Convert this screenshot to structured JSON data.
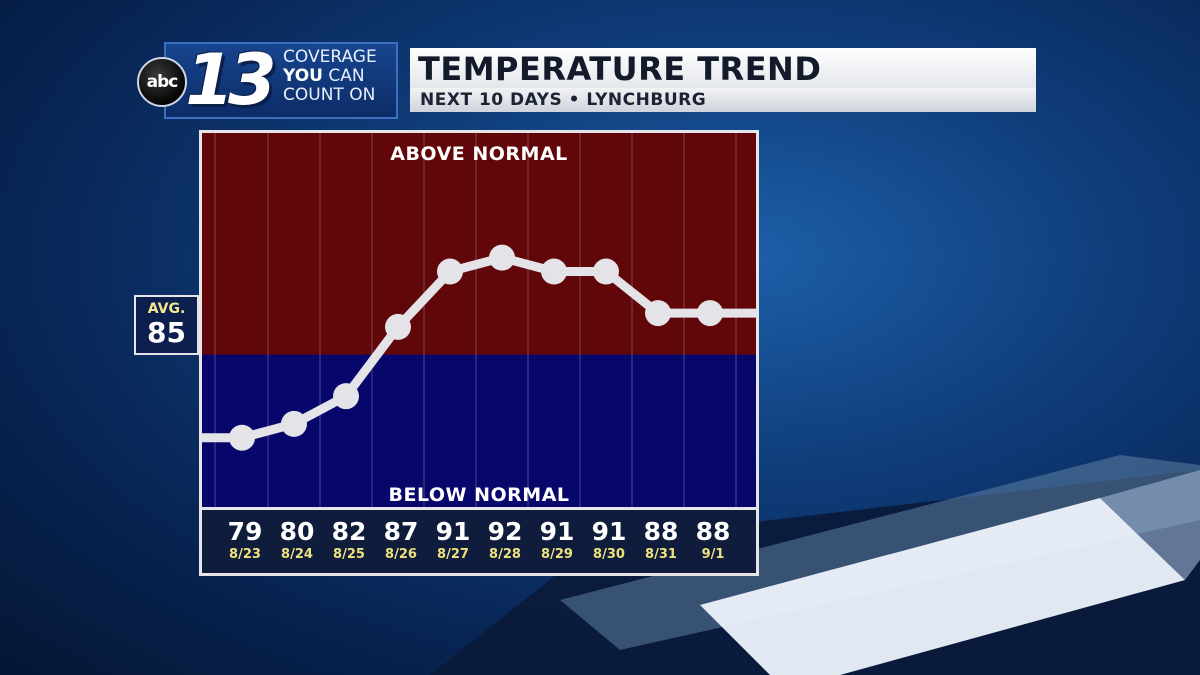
{
  "header": {
    "brand": "abc",
    "channel": "13",
    "tagline": [
      "COVERAGE",
      "YOU",
      "CAN",
      "COUNT ON"
    ],
    "title": "TEMPERATURE TREND",
    "subtitle": "NEXT 10 DAYS • LYNCHBURG"
  },
  "average": {
    "label": "AVG.",
    "value": "85"
  },
  "zones": {
    "above": "ABOVE NORMAL",
    "below": "BELOW NORMAL"
  },
  "colors": {
    "above": "#610609",
    "below": "#07066b",
    "line": "#e4e3e8"
  },
  "chart_data": {
    "type": "line",
    "title": "TEMPERATURE TREND",
    "subtitle": "NEXT 10 DAYS • LYNCHBURG",
    "x": [
      "8/23",
      "8/24",
      "8/25",
      "8/26",
      "8/27",
      "8/28",
      "8/29",
      "8/30",
      "8/31",
      "9/1"
    ],
    "temps": [
      "79",
      "80",
      "82",
      "87",
      "91",
      "92",
      "91",
      "91",
      "88",
      "88"
    ],
    "values": [
      79,
      80,
      82,
      87,
      91,
      92,
      91,
      91,
      88,
      88
    ],
    "normal": 85,
    "ylim": [
      74,
      101
    ],
    "grid": true
  }
}
